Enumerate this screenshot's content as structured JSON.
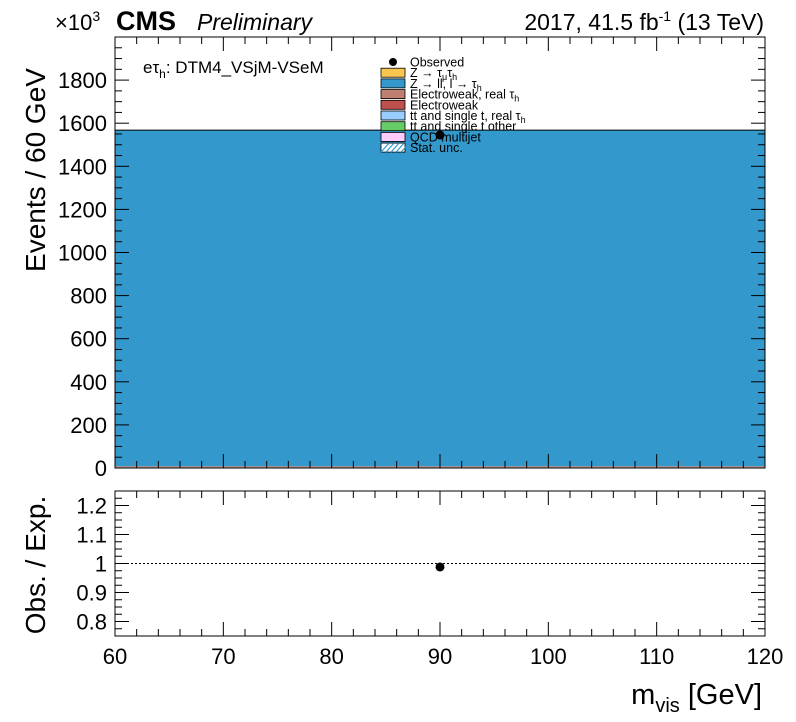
{
  "header": {
    "exponent_base": "×10",
    "exponent_power": "3",
    "experiment": "CMS",
    "status": "Preliminary",
    "lumi_year": "2017, 41.5 fb",
    "lumi_sup": "-1",
    "lumi_energy": " (13 TeV)"
  },
  "category": {
    "prefix": "eτ",
    "sub": "h",
    "suffix": ": DTM4_VSjM-VSeM"
  },
  "colors": {
    "ztt": "#f9c74f",
    "zll": "#3399cc",
    "ew_real": "#c08070",
    "ew": "#c0504d",
    "tt_real": "#99ccff",
    "tt_other": "#66cc66",
    "qcd": "#ffccff",
    "stat": "#3399cc"
  },
  "chart_data": [
    {
      "type": "bar",
      "panel": "main",
      "ylabel": "Events / 60 GeV",
      "ylim": [
        0,
        2000
      ],
      "y_unit_multiplier": 1000,
      "y_ticks": [
        0,
        200,
        400,
        600,
        800,
        1000,
        1200,
        1400,
        1600,
        1800
      ],
      "xlim": [
        60,
        120
      ],
      "bin_edges": [
        60,
        120
      ],
      "series": [
        {
          "name": "Z → τ_{μ}τ_{h}",
          "key": "ztt",
          "values": [
            0
          ]
        },
        {
          "name": "Z → ll, l → τ_{h}",
          "key": "zll",
          "values": [
            1560
          ]
        },
        {
          "name": "Electroweak, real τ_{h}",
          "key": "ew_real",
          "values": [
            5
          ]
        },
        {
          "name": "Electroweak",
          "key": "ew",
          "values": [
            3
          ]
        },
        {
          "name": "tt and single t, real τ_{h}",
          "key": "tt_real",
          "values": [
            0
          ]
        },
        {
          "name": "tt and single t other",
          "key": "tt_other",
          "values": [
            0
          ]
        },
        {
          "name": "QCD multijet",
          "key": "qcd",
          "values": [
            0
          ]
        }
      ],
      "observed": {
        "name": "Observed",
        "x": [
          90
        ],
        "y": [
          1545
        ]
      },
      "legend": {
        "placement": "top-center",
        "entries": [
          {
            "label": "Observed",
            "key": "obs"
          },
          {
            "label": "Z → τ",
            "sub": "μ",
            "label2": "τ",
            "sub2": "h",
            "key": "ztt"
          },
          {
            "label": "Z → ll, l → τ",
            "sub": "h",
            "key": "zll"
          },
          {
            "label": "Electroweak, real τ",
            "sub": "h",
            "key": "ew_real"
          },
          {
            "label": "Electroweak",
            "key": "ew"
          },
          {
            "label": "tt and single t, real τ",
            "sub": "h",
            "key": "tt_real"
          },
          {
            "label": "tt and single t other",
            "key": "tt_other"
          },
          {
            "label": "QCD multijet",
            "key": "qcd"
          },
          {
            "label": "Stat. unc.",
            "key": "stat"
          }
        ]
      }
    },
    {
      "type": "scatter",
      "panel": "ratio",
      "ylabel": "Obs. / Exp.",
      "xlabel": "m",
      "xlabel_sub": "vis",
      "xlabel_unit": " [GeV]",
      "ylim": [
        0.75,
        1.25
      ],
      "y_ticks": [
        0.8,
        0.9,
        1,
        1.1,
        1.2
      ],
      "y_tick_labels": [
        "0.8",
        "0.9",
        "1",
        "1.1",
        "1.2"
      ],
      "xlim": [
        60,
        120
      ],
      "x_ticks": [
        60,
        70,
        80,
        90,
        100,
        110,
        120
      ],
      "reference_line": 1,
      "x": [
        90
      ],
      "y": [
        0.988
      ]
    }
  ]
}
